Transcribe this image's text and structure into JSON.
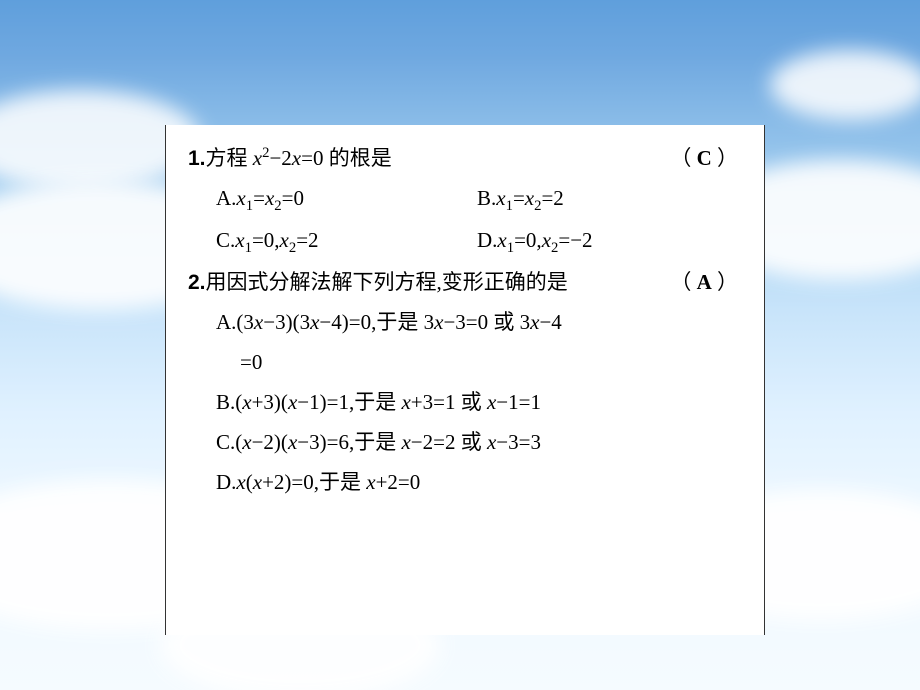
{
  "background": {
    "gradient_top": "#5f9fdc",
    "gradient_bottom": "#f5fbff",
    "cloud_color": "#ffffff"
  },
  "sheet": {
    "bg": "#ffffff",
    "border_color": "#333333",
    "text_color": "#000000",
    "font_size_pt": 16,
    "font_family": "SimSun / Times New Roman"
  },
  "q1": {
    "number": "1.",
    "stem_pre": "方程 ",
    "stem_math": "x² − 2x = 0",
    "stem_math_plain_prefix": "x",
    "stem_math_sup": "2",
    "stem_math_mid": "−2",
    "stem_math_var2": "x",
    "stem_math_eq": "=0",
    "stem_post": " 的根是",
    "answer": "C",
    "optA_label": "A.",
    "optA_x1": "x",
    "optA_s1": "1",
    "optA_eq1": "=",
    "optA_x2": "x",
    "optA_s2": "2",
    "optA_eq2": "=0",
    "optB_label": "B.",
    "optB_x1": "x",
    "optB_s1": "1",
    "optB_eq1": "=",
    "optB_x2": "x",
    "optB_s2": "2",
    "optB_eq2": "=2",
    "optC_label": "C.",
    "optC_x1": "x",
    "optC_s1": "1",
    "optC_v1": "=0,",
    "optC_x2": "x",
    "optC_s2": "2",
    "optC_v2": "=2",
    "optD_label": "D.",
    "optD_x1": "x",
    "optD_s1": "1",
    "optD_v1": "=0,",
    "optD_x2": "x",
    "optD_s2": "2",
    "optD_v2": "=−2"
  },
  "q2": {
    "number": "2.",
    "stem": "用因式分解法解下列方程,变形正确的是",
    "answer": "A",
    "optA_label": "A.",
    "optA_l1a": "(3",
    "optA_l1b": "x",
    "optA_l1c": "−3)(3",
    "optA_l1d": "x",
    "optA_l1e": "−4)=0,于是 3",
    "optA_l1f": "x",
    "optA_l1g": "−3=0 或 3",
    "optA_l1h": "x",
    "optA_l1i": "−4",
    "optA_l2": "=0",
    "optB_label": "B.",
    "optB_a": "(",
    "optB_b": "x",
    "optB_c": "+3)(",
    "optB_d": "x",
    "optB_e": "−1)=1,于是 ",
    "optB_f": "x",
    "optB_g": "+3=1 或 ",
    "optB_h": "x",
    "optB_i": "−1=1",
    "optC_label": "C.",
    "optC_a": "(",
    "optC_b": "x",
    "optC_c": "−2)(",
    "optC_d": "x",
    "optC_e": "−3)=6,于是 ",
    "optC_f": "x",
    "optC_g": "−2=2 或 ",
    "optC_h": "x",
    "optC_i": "−3=3",
    "optD_label": "D.",
    "optD_a": "x",
    "optD_b": "(",
    "optD_c": "x",
    "optD_d": "+2)=0,于是 ",
    "optD_e": "x",
    "optD_f": "+2=0"
  },
  "paren_open": "（",
  "paren_close": "）"
}
